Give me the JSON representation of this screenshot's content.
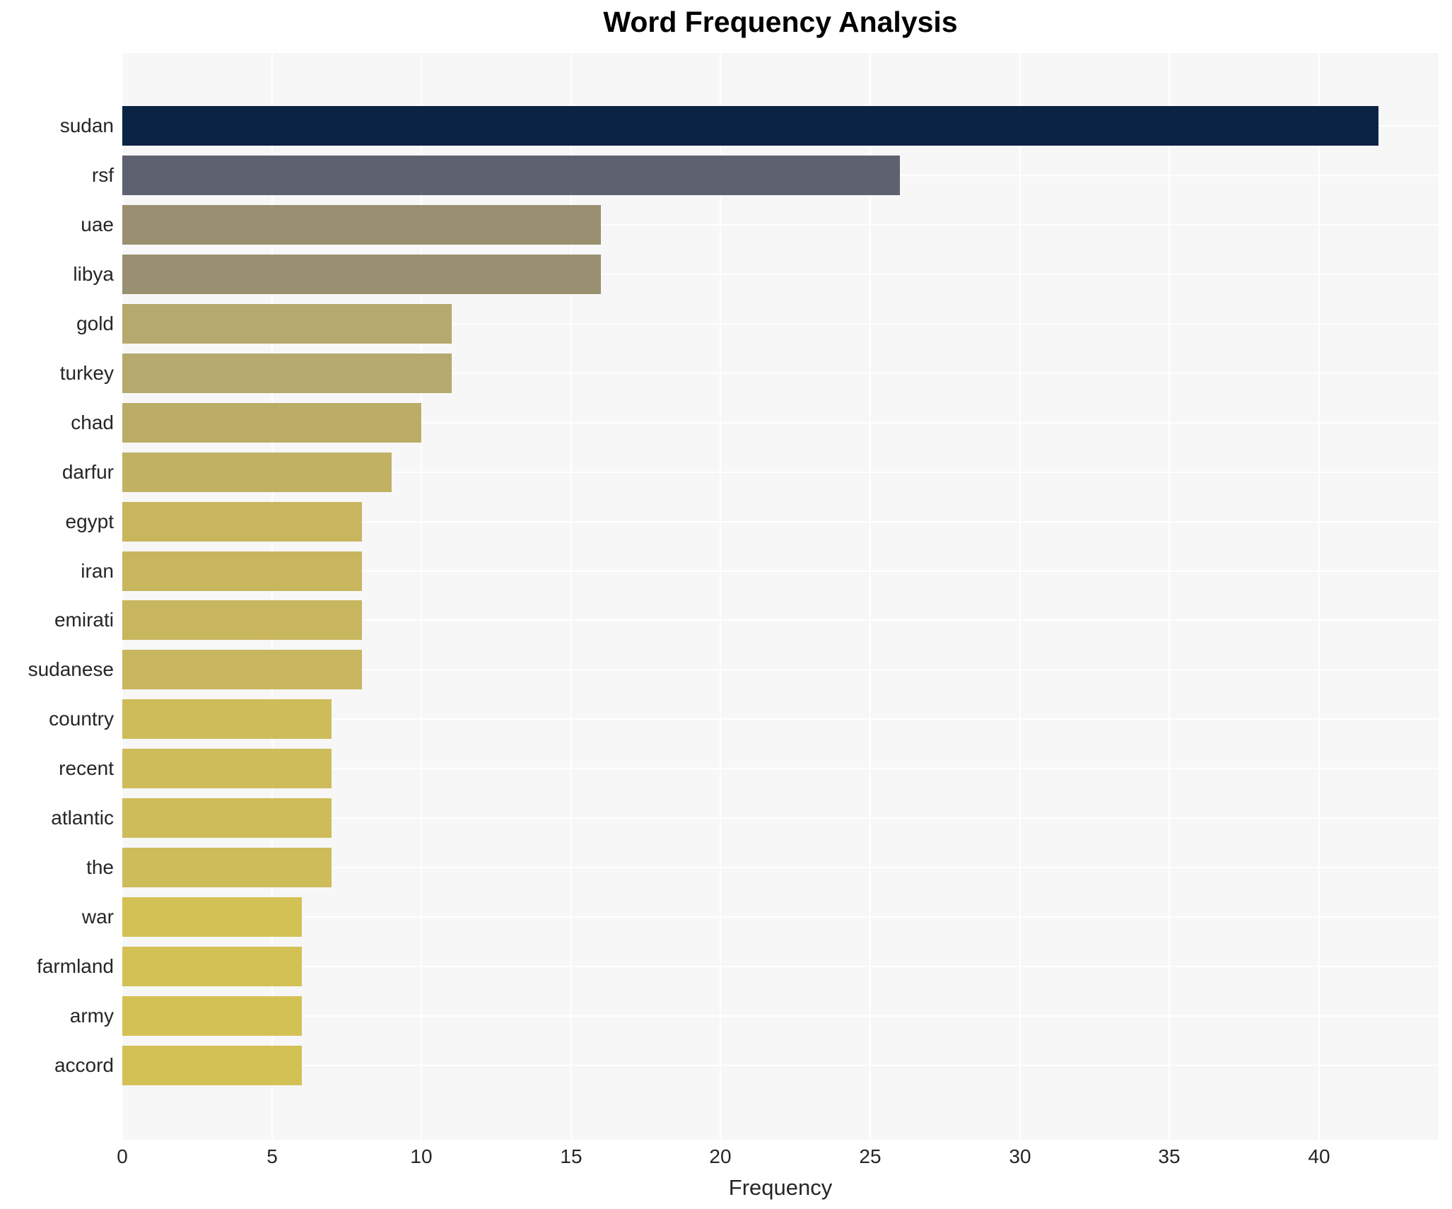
{
  "title": "Word Frequency Analysis",
  "chart_data": {
    "type": "bar",
    "orientation": "horizontal",
    "title": "Word Frequency Analysis",
    "xlabel": "Frequency",
    "ylabel": "",
    "categories": [
      "sudan",
      "rsf",
      "uae",
      "libya",
      "gold",
      "turkey",
      "chad",
      "darfur",
      "egypt",
      "iran",
      "emirati",
      "sudanese",
      "country",
      "recent",
      "atlantic",
      "the",
      "war",
      "farmland",
      "army",
      "accord"
    ],
    "values": [
      42,
      26,
      16,
      16,
      11,
      11,
      10,
      9,
      8,
      8,
      8,
      8,
      7,
      7,
      7,
      7,
      6,
      6,
      6,
      6
    ],
    "bar_colors": [
      "#0b2344",
      "#5e616e",
      "#989070",
      "#989070",
      "#b5a96d",
      "#b5a96d",
      "#bbad68",
      "#c1b263",
      "#c8b65f",
      "#c8b65f",
      "#c8b65f",
      "#c8b65f",
      "#cebc5a",
      "#cebc5a",
      "#cebc5a",
      "#cebc5a",
      "#d4c156",
      "#d4c156",
      "#d4c156",
      "#d4c156"
    ],
    "x_ticks": [
      0,
      5,
      10,
      15,
      20,
      25,
      30,
      35,
      40
    ],
    "xlim": [
      0,
      44
    ],
    "grid": true,
    "legend": false,
    "plot_bg_color": "#f7f7f8",
    "grid_color": "#ffffff",
    "text_color": "#262626"
  }
}
